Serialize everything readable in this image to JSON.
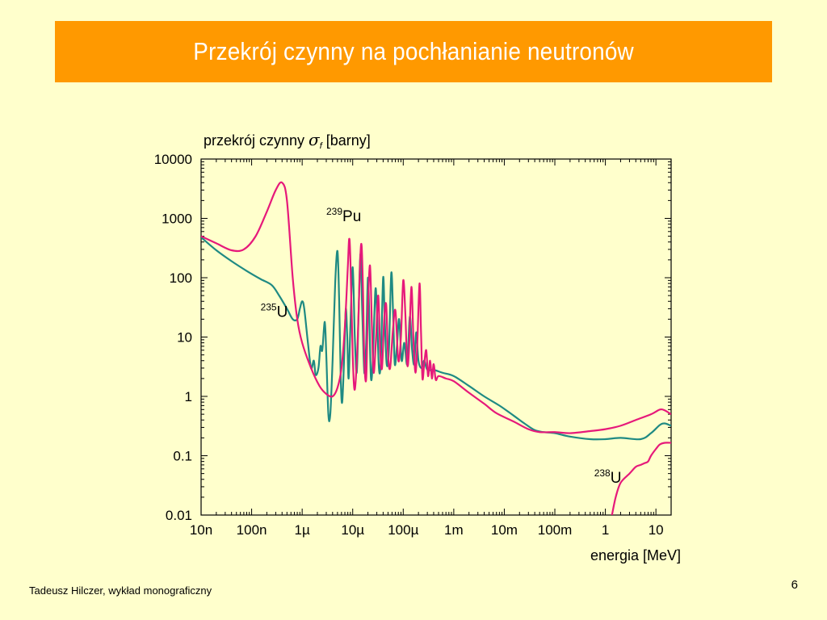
{
  "slide": {
    "title": "Przekrój czynny na pochłanianie neutronów",
    "footer": "Tadeusz Hilczer, wykład monograficzny",
    "page_number": "6"
  },
  "colors": {
    "background": "#ffffcc",
    "title_bar": "#ff9900",
    "title_text": "#ffffff",
    "pu239": "#e6197a",
    "u235": "#1f8a83",
    "u238": "#e6197a"
  },
  "chart_data": {
    "type": "line",
    "ylabel_prefix": "przekrój czynny",
    "ylabel_symbol": "σ",
    "ylabel_subscript": "f",
    "ylabel_unit": "[barny]",
    "xlabel": "energia  [MeV]",
    "xscale": "log",
    "yscale": "log",
    "xlim": [
      1e-08,
      20
    ],
    "ylim": [
      0.01,
      10000
    ],
    "x_ticks": [
      {
        "v": 1e-08,
        "label": "10n"
      },
      {
        "v": 1e-07,
        "label": "100n"
      },
      {
        "v": 1e-06,
        "label": "1µ"
      },
      {
        "v": 1e-05,
        "label": "10µ"
      },
      {
        "v": 0.0001,
        "label": "100µ"
      },
      {
        "v": 0.001,
        "label": "1m"
      },
      {
        "v": 0.01,
        "label": "10m"
      },
      {
        "v": 0.1,
        "label": "100m"
      },
      {
        "v": 1,
        "label": "1"
      },
      {
        "v": 10,
        "label": "10"
      }
    ],
    "y_ticks": [
      {
        "v": 0.01,
        "label": "0.01"
      },
      {
        "v": 0.1,
        "label": "0.1"
      },
      {
        "v": 1,
        "label": "1"
      },
      {
        "v": 10,
        "label": "10"
      },
      {
        "v": 100,
        "label": "100"
      },
      {
        "v": 1000,
        "label": "1000"
      },
      {
        "v": 10000,
        "label": "10000"
      }
    ],
    "series": [
      {
        "key": "pu239",
        "label_mass": "239",
        "label_symbol": "Pu",
        "label_at": [
          3e-06,
          900
        ],
        "points": [
          [
            1e-08,
            500
          ],
          [
            2e-08,
            380
          ],
          [
            4e-08,
            290
          ],
          [
            7e-08,
            300
          ],
          [
            1.2e-07,
            500
          ],
          [
            2e-07,
            1300
          ],
          [
            3e-07,
            3000
          ],
          [
            4e-07,
            4000
          ],
          [
            5e-07,
            2000
          ],
          [
            6.5e-07,
            100
          ],
          [
            8e-07,
            20
          ],
          [
            1e-06,
            8
          ],
          [
            1.5e-06,
            3
          ],
          [
            2.2e-06,
            1.5
          ],
          [
            3e-06,
            1.1
          ],
          [
            4e-06,
            1.0
          ],
          [
            5e-06,
            1.4
          ],
          [
            6e-06,
            3
          ],
          [
            7e-06,
            15
          ],
          [
            8e-06,
            150
          ],
          [
            8.5e-06,
            450
          ],
          [
            9e-06,
            200
          ],
          [
            1e-05,
            5
          ],
          [
            1.1e-05,
            1.3
          ],
          [
            1.25e-05,
            8
          ],
          [
            1.4e-05,
            180
          ],
          [
            1.5e-05,
            350
          ],
          [
            1.6e-05,
            60
          ],
          [
            1.7e-05,
            4
          ],
          [
            1.85e-05,
            2
          ],
          [
            2e-05,
            30
          ],
          [
            2.2e-05,
            160
          ],
          [
            2.4e-05,
            15
          ],
          [
            2.6e-05,
            2.5
          ],
          [
            2.9e-05,
            10
          ],
          [
            3.2e-05,
            50
          ],
          [
            3.5e-05,
            6
          ],
          [
            3.8e-05,
            3
          ],
          [
            4.2e-05,
            20
          ],
          [
            4.6e-05,
            35
          ],
          [
            5e-05,
            5
          ],
          [
            5.5e-05,
            3
          ],
          [
            6.2e-05,
            12
          ],
          [
            7e-05,
            28
          ],
          [
            8e-05,
            4
          ],
          [
            9e-05,
            10
          ],
          [
            0.0001,
            90
          ],
          [
            0.00011,
            25
          ],
          [
            0.00012,
            3.5
          ],
          [
            0.00013,
            6
          ],
          [
            0.000145,
            70
          ],
          [
            0.00016,
            8
          ],
          [
            0.000175,
            2.5
          ],
          [
            0.00019,
            8
          ],
          [
            0.00021,
            80
          ],
          [
            0.000225,
            12
          ],
          [
            0.00024,
            2
          ],
          [
            0.00026,
            3.5
          ],
          [
            0.000285,
            6
          ],
          [
            0.00031,
            2.2
          ],
          [
            0.00034,
            4
          ],
          [
            0.00037,
            2
          ],
          [
            0.0004,
            3.5
          ],
          [
            0.00044,
            1.9
          ],
          [
            0.0005,
            2.2
          ],
          [
            0.0007,
            2
          ],
          [
            0.001,
            1.8
          ],
          [
            0.002,
            1.15
          ],
          [
            0.004,
            0.75
          ],
          [
            0.007,
            0.52
          ],
          [
            0.015,
            0.38
          ],
          [
            0.03,
            0.28
          ],
          [
            0.05,
            0.25
          ],
          [
            0.1,
            0.25
          ],
          [
            0.2,
            0.24
          ],
          [
            0.5,
            0.26
          ],
          [
            1,
            0.28
          ],
          [
            2,
            0.32
          ],
          [
            4,
            0.4
          ],
          [
            8,
            0.5
          ],
          [
            12,
            0.6
          ],
          [
            15,
            0.58
          ],
          [
            20,
            0.5
          ]
        ]
      },
      {
        "key": "u235",
        "label_mass": "235",
        "label_symbol": "U",
        "label_at": [
          1.5e-07,
          22
        ],
        "points": [
          [
            1e-08,
            480
          ],
          [
            2e-08,
            290
          ],
          [
            4e-08,
            190
          ],
          [
            8e-08,
            130
          ],
          [
            1.5e-07,
            95
          ],
          [
            2.5e-07,
            75
          ],
          [
            3.5e-07,
            50
          ],
          [
            5e-07,
            30
          ],
          [
            6.5e-07,
            20
          ],
          [
            8e-07,
            20
          ],
          [
            9e-07,
            30
          ],
          [
            1e-06,
            40
          ],
          [
            1.1e-06,
            30
          ],
          [
            1.3e-06,
            8
          ],
          [
            1.5e-06,
            3
          ],
          [
            1.7e-06,
            4
          ],
          [
            1.85e-06,
            2.3
          ],
          [
            2.1e-06,
            3
          ],
          [
            2.3e-06,
            7
          ],
          [
            2.5e-06,
            6
          ],
          [
            2.8e-06,
            18
          ],
          [
            3e-06,
            5
          ],
          [
            3.3e-06,
            0.5
          ],
          [
            3.6e-06,
            0.5
          ],
          [
            4e-06,
            4
          ],
          [
            4.5e-06,
            80
          ],
          [
            5e-06,
            280
          ],
          [
            5.4e-06,
            40
          ],
          [
            5.8e-06,
            2
          ],
          [
            6.2e-06,
            0.8
          ],
          [
            6.8e-06,
            5
          ],
          [
            7.3e-06,
            30
          ],
          [
            7.8e-06,
            10
          ],
          [
            8.3e-06,
            2
          ],
          [
            9e-06,
            15
          ],
          [
            1e-05,
            150
          ],
          [
            1.1e-05,
            10
          ],
          [
            1.2e-05,
            2.5
          ],
          [
            1.3e-05,
            20
          ],
          [
            1.42e-05,
            250
          ],
          [
            1.55e-05,
            25
          ],
          [
            1.7e-05,
            2.5
          ],
          [
            1.85e-05,
            8
          ],
          [
            2e-05,
            100
          ],
          [
            2.15e-05,
            15
          ],
          [
            2.3e-05,
            2
          ],
          [
            2.5e-05,
            4
          ],
          [
            2.8e-05,
            60
          ],
          [
            3e-05,
            30
          ],
          [
            3.3e-05,
            3
          ],
          [
            3.6e-05,
            4
          ],
          [
            4e-05,
            100
          ],
          [
            4.3e-05,
            20
          ],
          [
            4.7e-05,
            3.5
          ],
          [
            5.2e-05,
            6
          ],
          [
            5.8e-05,
            120
          ],
          [
            6.3e-05,
            25
          ],
          [
            6.8e-05,
            3.5
          ],
          [
            7.5e-05,
            7
          ],
          [
            8.3e-05,
            20
          ],
          [
            9.3e-05,
            4
          ],
          [
            0.000105,
            8
          ],
          [
            0.00012,
            3.5
          ],
          [
            0.000135,
            22
          ],
          [
            0.00015,
            6
          ],
          [
            0.000165,
            3.5
          ],
          [
            0.00018,
            12
          ],
          [
            0.0002,
            4
          ],
          [
            0.00023,
            3
          ],
          [
            0.00026,
            4
          ],
          [
            0.0003,
            2.8
          ],
          [
            0.0004,
            2.8
          ],
          [
            0.0006,
            2.5
          ],
          [
            0.001,
            2.2
          ],
          [
            0.002,
            1.5
          ],
          [
            0.004,
            1
          ],
          [
            0.008,
            0.7
          ],
          [
            0.015,
            0.48
          ],
          [
            0.025,
            0.35
          ],
          [
            0.04,
            0.27
          ],
          [
            0.06,
            0.25
          ],
          [
            0.1,
            0.24
          ],
          [
            0.2,
            0.21
          ],
          [
            0.5,
            0.19
          ],
          [
            1,
            0.19
          ],
          [
            2,
            0.2
          ],
          [
            5,
            0.19
          ],
          [
            8,
            0.24
          ],
          [
            12,
            0.33
          ],
          [
            15,
            0.35
          ],
          [
            20,
            0.32
          ]
        ]
      },
      {
        "key": "u238",
        "label_mass": "238",
        "label_symbol": "U",
        "label_at": [
          0.6,
          0.035
        ],
        "points": [
          [
            1.35,
            0.01
          ],
          [
            1.6,
            0.02
          ],
          [
            2,
            0.035
          ],
          [
            3,
            0.05
          ],
          [
            4,
            0.065
          ],
          [
            5,
            0.07
          ],
          [
            6,
            0.075
          ],
          [
            7,
            0.08
          ],
          [
            8,
            0.1
          ],
          [
            10,
            0.13
          ],
          [
            12,
            0.155
          ],
          [
            15,
            0.165
          ],
          [
            20,
            0.165
          ]
        ]
      }
    ]
  }
}
